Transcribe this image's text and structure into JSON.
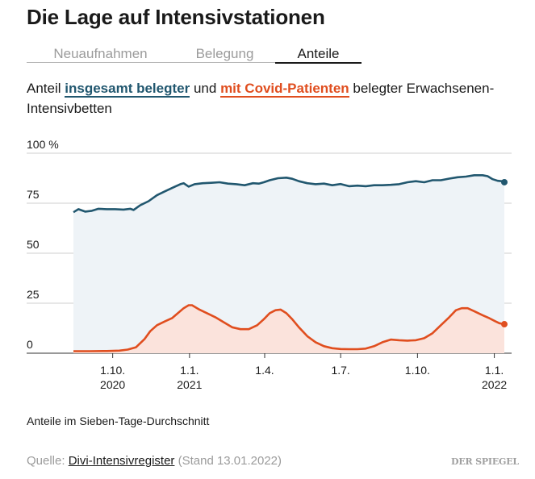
{
  "title": "Die Lage auf Intensivstationen",
  "tabs": [
    {
      "label": "Neuaufnahmen",
      "active": false
    },
    {
      "label": "Belegung",
      "active": false
    },
    {
      "label": "Anteile",
      "active": true
    }
  ],
  "subtitle": {
    "prefix": "Anteil",
    "series_total_label": "insgesamt belegter",
    "connector": "und",
    "series_covid_label": "mit Covid-Patienten",
    "suffix": "belegter Erwachsenen-Intensivbetten"
  },
  "note": "Anteile im Sieben-Tage-Durchschnitt",
  "source": {
    "prefix": "Quelle:",
    "link": "Divi-Intensivregister",
    "stand": "(Stand 13.01.2022)"
  },
  "logo": "DER SPIEGEL",
  "colors": {
    "total": "#21576f",
    "covid": "#e04e1f",
    "total_fill": "#eef3f7",
    "covid_fill": "#fbe3dc",
    "grid": "#cfcfcf"
  },
  "chart_data": {
    "type": "area",
    "x_unit": "days since 2020-08-15",
    "x_range": [
      0,
      516
    ],
    "y_range": [
      0,
      100
    ],
    "y_ticks": [
      {
        "value": 0,
        "label": "0"
      },
      {
        "value": 25,
        "label": "25"
      },
      {
        "value": 50,
        "label": "50"
      },
      {
        "value": 75,
        "label": "75"
      },
      {
        "value": 100,
        "label": "100 %"
      }
    ],
    "x_ticks": [
      {
        "day": 47,
        "label": "1.10.",
        "year": "2020"
      },
      {
        "day": 139,
        "label": "1.1.",
        "year": "2021"
      },
      {
        "day": 229,
        "label": "1.4.",
        "year": ""
      },
      {
        "day": 320,
        "label": "1.7.",
        "year": ""
      },
      {
        "day": 412,
        "label": "1.10.",
        "year": ""
      },
      {
        "day": 504,
        "label": "1.1.",
        "year": "2022"
      }
    ],
    "series": [
      {
        "name": "insgesamt belegter",
        "points": [
          [
            0,
            70.5
          ],
          [
            6,
            72
          ],
          [
            14,
            70.8
          ],
          [
            22,
            71.2
          ],
          [
            30,
            72.2
          ],
          [
            40,
            72
          ],
          [
            50,
            72
          ],
          [
            60,
            71.8
          ],
          [
            68,
            72.2
          ],
          [
            72,
            71.6
          ],
          [
            80,
            74
          ],
          [
            90,
            76
          ],
          [
            100,
            79
          ],
          [
            110,
            81
          ],
          [
            120,
            83
          ],
          [
            128,
            84.5
          ],
          [
            132,
            85
          ],
          [
            138,
            83.3
          ],
          [
            145,
            84.5
          ],
          [
            155,
            85
          ],
          [
            165,
            85.2
          ],
          [
            175,
            85.5
          ],
          [
            185,
            84.8
          ],
          [
            195,
            84.5
          ],
          [
            205,
            84
          ],
          [
            215,
            85
          ],
          [
            222,
            84.8
          ],
          [
            228,
            85.5
          ],
          [
            235,
            86.5
          ],
          [
            245,
            87.5
          ],
          [
            255,
            87.8
          ],
          [
            262,
            87.2
          ],
          [
            270,
            86
          ],
          [
            280,
            85
          ],
          [
            290,
            84.5
          ],
          [
            300,
            84.8
          ],
          [
            310,
            84
          ],
          [
            320,
            84.6
          ],
          [
            330,
            83.5
          ],
          [
            340,
            83.8
          ],
          [
            350,
            83.5
          ],
          [
            360,
            84
          ],
          [
            370,
            84
          ],
          [
            380,
            84.2
          ],
          [
            390,
            84.5
          ],
          [
            400,
            85.5
          ],
          [
            410,
            86
          ],
          [
            420,
            85.5
          ],
          [
            430,
            86.5
          ],
          [
            440,
            86.5
          ],
          [
            450,
            87.3
          ],
          [
            460,
            88
          ],
          [
            470,
            88.3
          ],
          [
            480,
            89
          ],
          [
            490,
            89
          ],
          [
            496,
            88.5
          ],
          [
            502,
            87
          ],
          [
            508,
            86.2
          ],
          [
            513,
            86
          ],
          [
            516,
            85.5
          ]
        ]
      },
      {
        "name": "mit Covid-Patienten",
        "points": [
          [
            0,
            1
          ],
          [
            20,
            1
          ],
          [
            40,
            1.1
          ],
          [
            55,
            1.3
          ],
          [
            65,
            1.8
          ],
          [
            75,
            3
          ],
          [
            85,
            7
          ],
          [
            92,
            11
          ],
          [
            100,
            14
          ],
          [
            110,
            16
          ],
          [
            118,
            17.5
          ],
          [
            125,
            20
          ],
          [
            132,
            22.5
          ],
          [
            138,
            24
          ],
          [
            142,
            24
          ],
          [
            150,
            22
          ],
          [
            160,
            20
          ],
          [
            170,
            18
          ],
          [
            180,
            15.5
          ],
          [
            190,
            13
          ],
          [
            200,
            12
          ],
          [
            210,
            12
          ],
          [
            220,
            14
          ],
          [
            228,
            17
          ],
          [
            235,
            20
          ],
          [
            242,
            21.5
          ],
          [
            248,
            21.8
          ],
          [
            255,
            20
          ],
          [
            262,
            17
          ],
          [
            270,
            13
          ],
          [
            280,
            8.5
          ],
          [
            290,
            5.5
          ],
          [
            300,
            3.5
          ],
          [
            310,
            2.5
          ],
          [
            320,
            2.1
          ],
          [
            330,
            2
          ],
          [
            340,
            2
          ],
          [
            350,
            2.3
          ],
          [
            360,
            3.5
          ],
          [
            370,
            5.5
          ],
          [
            380,
            6.8
          ],
          [
            390,
            6.5
          ],
          [
            400,
            6.3
          ],
          [
            410,
            6.5
          ],
          [
            420,
            7.5
          ],
          [
            430,
            10
          ],
          [
            440,
            14
          ],
          [
            450,
            18
          ],
          [
            458,
            21.5
          ],
          [
            465,
            22.5
          ],
          [
            472,
            22.5
          ],
          [
            480,
            21
          ],
          [
            490,
            19
          ],
          [
            498,
            17.5
          ],
          [
            505,
            16
          ],
          [
            510,
            15
          ],
          [
            516,
            14.5
          ]
        ]
      }
    ]
  }
}
